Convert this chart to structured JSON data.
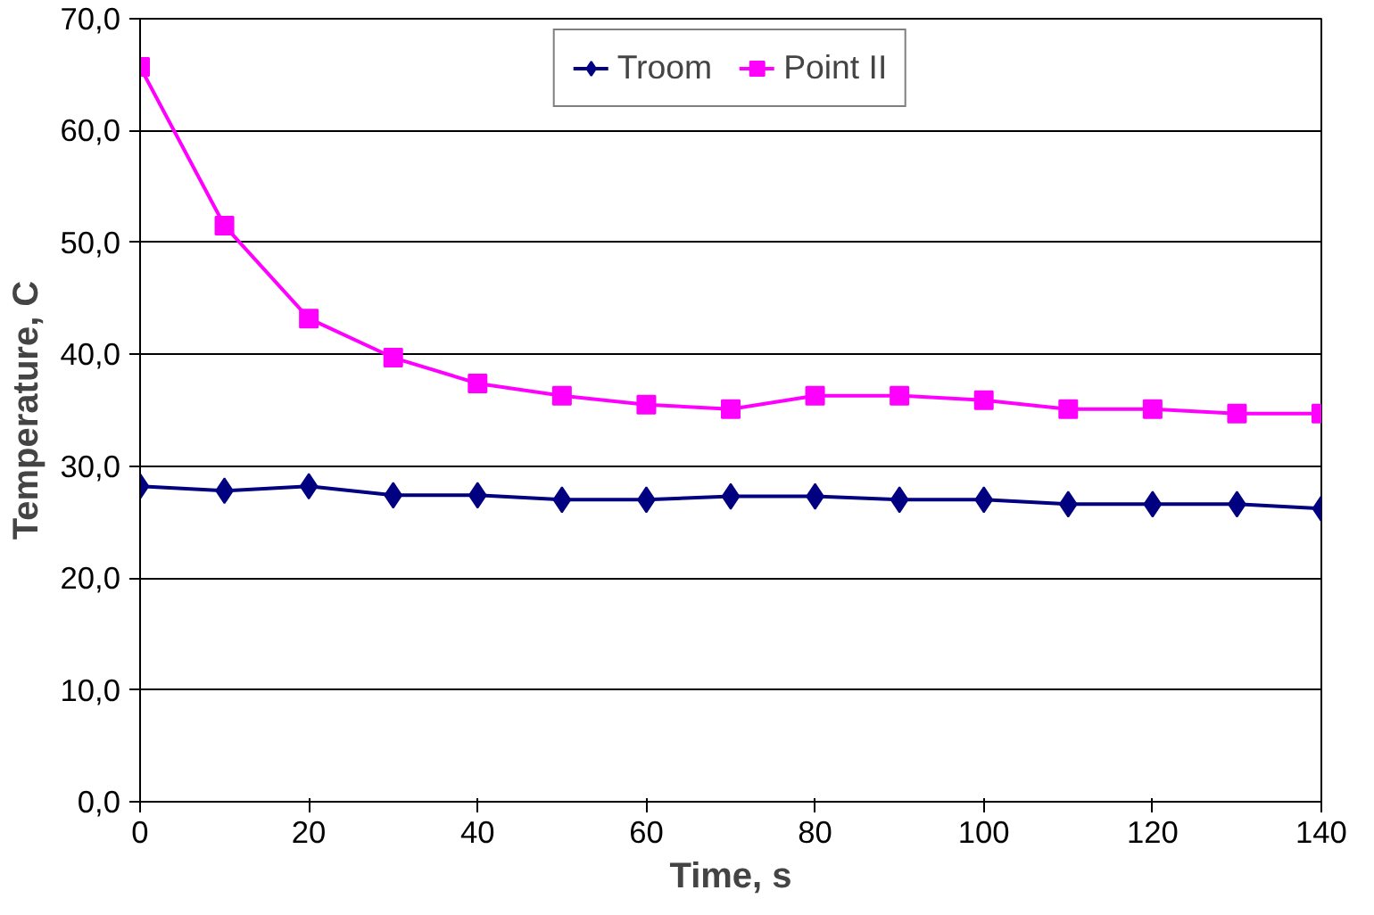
{
  "chart_data": {
    "type": "line",
    "xlabel": "Time, s",
    "ylabel": "Temperature, C",
    "x": [
      0,
      10,
      20,
      30,
      40,
      50,
      60,
      70,
      80,
      90,
      100,
      110,
      120,
      130,
      140
    ],
    "series": [
      {
        "name": "Troom",
        "color": "#000080",
        "marker": "diamond",
        "values": [
          28.2,
          27.8,
          28.2,
          27.4,
          27.4,
          27.0,
          27.0,
          27.3,
          27.3,
          27.0,
          27.0,
          26.6,
          26.6,
          26.6,
          26.2
        ]
      },
      {
        "name": "Point II",
        "color": "#ff00ff",
        "marker": "square",
        "values": [
          65.7,
          51.5,
          43.2,
          39.7,
          37.4,
          36.3,
          35.5,
          35.1,
          36.3,
          36.3,
          35.9,
          35.1,
          35.1,
          34.7,
          34.7
        ]
      }
    ],
    "xlim": [
      0,
      140
    ],
    "xticks": [
      0,
      20,
      40,
      60,
      80,
      100,
      120,
      140
    ],
    "ylim": [
      0,
      70
    ],
    "yticks": [
      {
        "value": 0,
        "label": "0,0"
      },
      {
        "value": 10,
        "label": "10,0"
      },
      {
        "value": 20,
        "label": "20,0"
      },
      {
        "value": 30,
        "label": "30,0"
      },
      {
        "value": 40,
        "label": "40,0"
      },
      {
        "value": 50,
        "label": "50,0"
      },
      {
        "value": 60,
        "label": "60,0"
      },
      {
        "value": 70,
        "label": "70,0"
      }
    ],
    "grid": "y",
    "legend": "top",
    "line_style": "solid"
  }
}
